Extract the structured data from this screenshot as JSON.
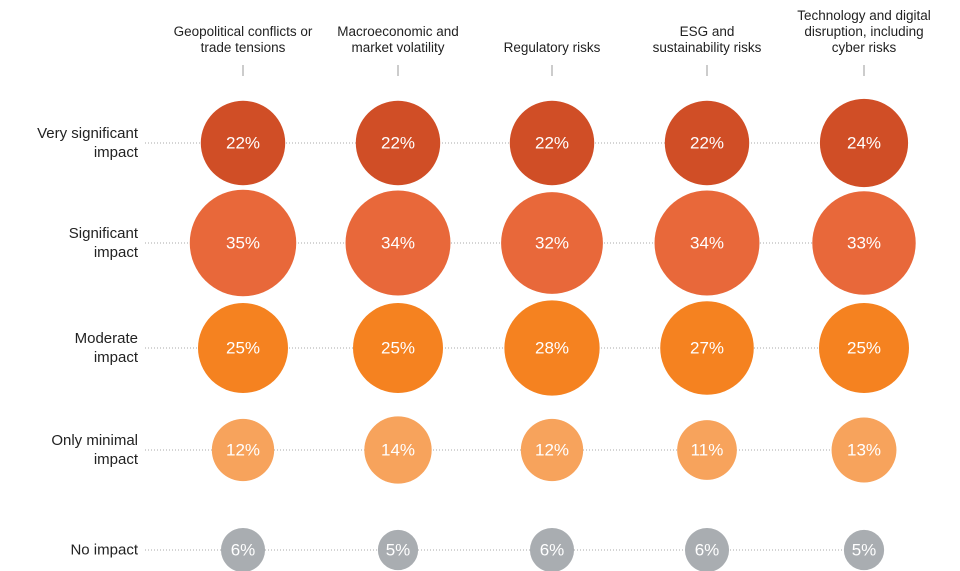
{
  "chart_data": {
    "type": "bubble",
    "categories": [
      "Geopolitical conflicts or trade tensions",
      "Macroeconomic and market volatility",
      "Regulatory risks",
      "ESG and sustainability risks",
      "Technology and digital disruption, including cyber risks"
    ],
    "series": [
      {
        "name": "Very significant impact",
        "color": "#d04e26",
        "values": [
          22,
          22,
          22,
          22,
          24
        ],
        "value_labels": [
          "22%",
          "22%",
          "22%",
          "22%",
          "24%"
        ]
      },
      {
        "name": "Significant impact",
        "color": "#e8683a",
        "values": [
          35,
          34,
          32,
          34,
          33
        ],
        "value_labels": [
          "35%",
          "34%",
          "32%",
          "34%",
          "33%"
        ]
      },
      {
        "name": "Moderate impact",
        "color": "#f58220",
        "values": [
          25,
          25,
          28,
          27,
          25
        ],
        "value_labels": [
          "25%",
          "25%",
          "28%",
          "27%",
          "25%"
        ]
      },
      {
        "name": "Only minimal impact",
        "color": "#f7a35c",
        "values": [
          12,
          14,
          12,
          11,
          13
        ],
        "value_labels": [
          "12%",
          "14%",
          "12%",
          "11%",
          "13%"
        ]
      },
      {
        "name": "No impact",
        "color": "#a9adb1",
        "values": [
          6,
          5,
          6,
          6,
          5
        ],
        "value_labels": [
          "6%",
          "5%",
          "6%",
          "6%",
          "5%"
        ]
      }
    ]
  }
}
